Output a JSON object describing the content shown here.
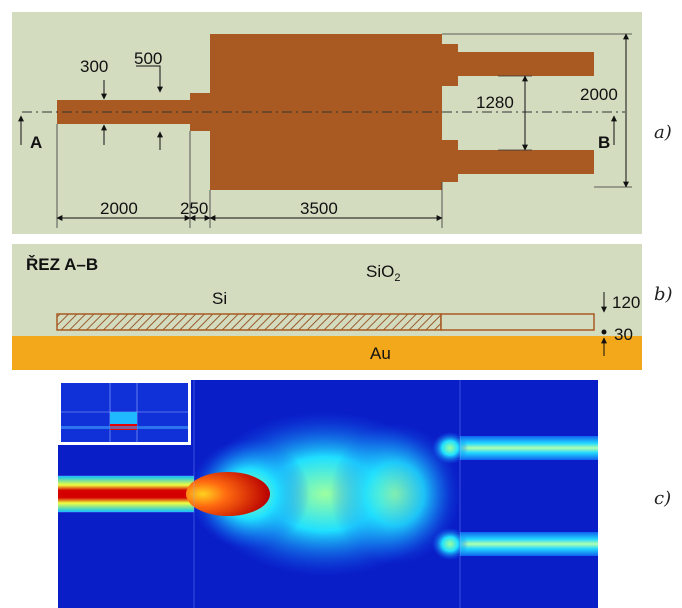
{
  "panel_a": {
    "label": "a)",
    "dims": {
      "width_300": "300",
      "width_500": "500",
      "gap_1280": "1280",
      "width_2000": "2000",
      "len_2000": "2000",
      "len_250": "250",
      "len_3500": "3500"
    },
    "section_start": "A",
    "section_end": "B"
  },
  "panel_b": {
    "label": "b)",
    "title": "ŘEZ A–B",
    "oxide": "SiO",
    "oxide_sub": "2",
    "silicon": "Si",
    "metal": "Au",
    "thickness_120": "120",
    "thickness_30": "30"
  },
  "panel_c": {
    "label": "c)"
  },
  "colors": {
    "background_panel": "#d4dcc0",
    "waveguide_brown": "#a85a22",
    "gold": "#f3a81b",
    "field_blue": "#0a1ec8"
  }
}
